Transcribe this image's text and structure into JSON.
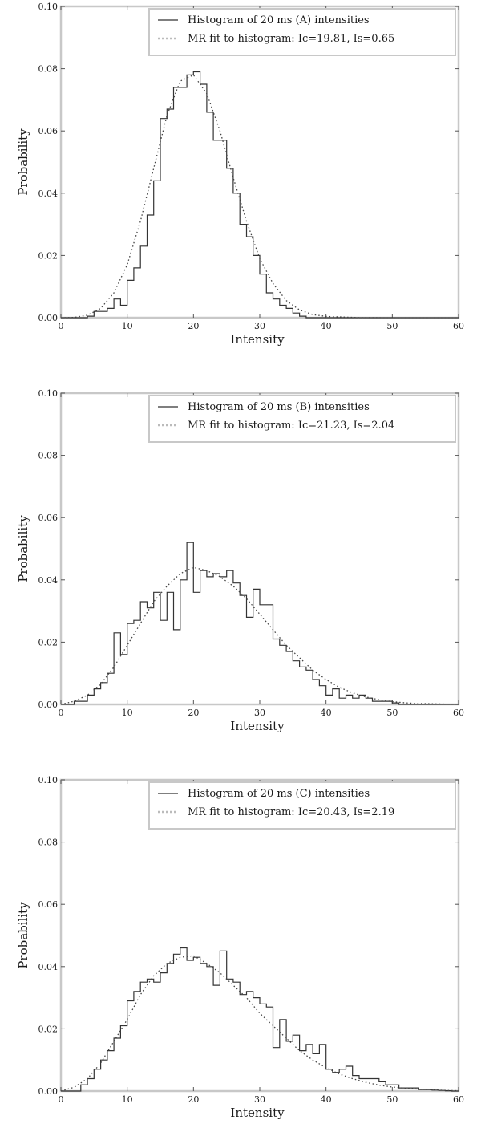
{
  "chart_data": [
    {
      "type": "line",
      "panel": "A",
      "xlabel": "Intensity",
      "ylabel": "Probability",
      "xlim": [
        0,
        60
      ],
      "ylim": [
        0,
        0.1
      ],
      "xticks": [
        "0",
        "10",
        "20",
        "30",
        "40",
        "50",
        "60"
      ],
      "yticks": [
        "0.00",
        "0.02",
        "0.04",
        "0.06",
        "0.08",
        "0.10"
      ],
      "grid": false,
      "legend_position": "top-right",
      "legend": [
        "Histogram of 20 ms (A) intensities",
        "MR fit to histogram: Ic=19.81, Is=0.65"
      ],
      "series": [
        {
          "name": "Histogram of 20 ms (A) intensities",
          "style": "steps",
          "bin_edges": [
            0,
            1,
            2,
            3,
            4,
            5,
            6,
            7,
            8,
            9,
            10,
            11,
            12,
            13,
            14,
            15,
            16,
            17,
            18,
            19,
            20,
            21,
            22,
            23,
            24,
            25,
            26,
            27,
            28,
            29,
            30,
            31,
            32,
            33,
            34,
            35,
            36,
            37,
            38,
            39,
            40,
            41,
            42,
            43,
            44,
            45,
            46,
            47,
            48,
            49,
            50,
            51,
            52,
            53,
            54,
            55,
            56,
            57,
            58,
            59,
            60
          ],
          "values": [
            0,
            0,
            0,
            0,
            0.0005,
            0.002,
            0.002,
            0.003,
            0.006,
            0.004,
            0.012,
            0.016,
            0.023,
            0.033,
            0.044,
            0.064,
            0.067,
            0.074,
            0.074,
            0.078,
            0.079,
            0.075,
            0.066,
            0.057,
            0.057,
            0.048,
            0.04,
            0.03,
            0.026,
            0.02,
            0.014,
            0.008,
            0.006,
            0.004,
            0.003,
            0.0015,
            0.0005,
            0,
            0,
            0,
            0,
            0,
            0,
            0,
            0,
            0,
            0,
            0,
            0,
            0,
            0,
            0,
            0,
            0,
            0,
            0,
            0,
            0,
            0,
            0
          ],
          "color": "#333333"
        },
        {
          "name": "MR fit to histogram: Ic=19.81, Is=0.65",
          "style": "dotted",
          "x": [
            0,
            2,
            4,
            6,
            8,
            10,
            12,
            14,
            16,
            18,
            20,
            22,
            24,
            26,
            28,
            30,
            32,
            34,
            36,
            38,
            40,
            45,
            50,
            55,
            60
          ],
          "values": [
            0,
            0.0001,
            0.0008,
            0.003,
            0.008,
            0.017,
            0.031,
            0.048,
            0.065,
            0.076,
            0.078,
            0.072,
            0.06,
            0.045,
            0.031,
            0.019,
            0.011,
            0.0055,
            0.0025,
            0.001,
            0.0004,
            2e-05,
            0,
            0,
            0
          ],
          "color": "#444444"
        }
      ]
    },
    {
      "type": "line",
      "panel": "B",
      "xlabel": "Intensity",
      "ylabel": "Probability",
      "xlim": [
        0,
        60
      ],
      "ylim": [
        0,
        0.1
      ],
      "xticks": [
        "0",
        "10",
        "20",
        "30",
        "40",
        "50",
        "60"
      ],
      "yticks": [
        "0.00",
        "0.02",
        "0.04",
        "0.06",
        "0.08",
        "0.10"
      ],
      "grid": false,
      "legend_position": "top-right",
      "legend": [
        "Histogram of 20 ms (B) intensities",
        "MR fit to histogram: Ic=21.23, Is=2.04"
      ],
      "series": [
        {
          "name": "Histogram of 20 ms (B) intensities",
          "style": "steps",
          "bin_edges": [
            0,
            1,
            2,
            3,
            4,
            5,
            6,
            7,
            8,
            9,
            10,
            11,
            12,
            13,
            14,
            15,
            16,
            17,
            18,
            19,
            20,
            21,
            22,
            23,
            24,
            25,
            26,
            27,
            28,
            29,
            30,
            31,
            32,
            33,
            34,
            35,
            36,
            37,
            38,
            39,
            40,
            41,
            42,
            43,
            44,
            45,
            46,
            47,
            48,
            49,
            50,
            51,
            52,
            53,
            54,
            55,
            56,
            57,
            58,
            59,
            60
          ],
          "values": [
            0,
            0,
            0.001,
            0.001,
            0.003,
            0.005,
            0.007,
            0.01,
            0.023,
            0.016,
            0.026,
            0.027,
            0.033,
            0.031,
            0.036,
            0.027,
            0.036,
            0.024,
            0.04,
            0.052,
            0.036,
            0.043,
            0.041,
            0.042,
            0.041,
            0.043,
            0.039,
            0.035,
            0.028,
            0.037,
            0.032,
            0.032,
            0.021,
            0.019,
            0.017,
            0.014,
            0.012,
            0.011,
            0.008,
            0.006,
            0.003,
            0.005,
            0.002,
            0.003,
            0.002,
            0.003,
            0.002,
            0.001,
            0.001,
            0.001,
            0.0005,
            0,
            0,
            0,
            0,
            0,
            0,
            0,
            0,
            0
          ],
          "color": "#333333"
        },
        {
          "name": "MR fit to histogram: Ic=21.23, Is=2.04",
          "style": "dotted",
          "x": [
            0,
            2,
            4,
            6,
            8,
            10,
            12,
            14,
            16,
            18,
            20,
            22,
            24,
            26,
            28,
            30,
            32,
            34,
            36,
            38,
            40,
            42,
            44,
            46,
            48,
            50,
            52,
            54,
            56,
            58,
            60
          ],
          "values": [
            0,
            0.001,
            0.003,
            0.0065,
            0.012,
            0.019,
            0.026,
            0.033,
            0.038,
            0.042,
            0.044,
            0.043,
            0.041,
            0.038,
            0.034,
            0.029,
            0.024,
            0.019,
            0.015,
            0.011,
            0.008,
            0.0055,
            0.0037,
            0.0024,
            0.0015,
            0.0009,
            0.0005,
            0.0003,
            0.0002,
            0.0001,
            0
          ],
          "color": "#444444"
        }
      ]
    },
    {
      "type": "line",
      "panel": "C",
      "xlabel": "Intensity",
      "ylabel": "Probability",
      "xlim": [
        0,
        60
      ],
      "ylim": [
        0,
        0.1
      ],
      "xticks": [
        "0",
        "10",
        "20",
        "30",
        "40",
        "50",
        "60"
      ],
      "yticks": [
        "0.00",
        "0.02",
        "0.04",
        "0.06",
        "0.08",
        "0.10"
      ],
      "grid": false,
      "legend_position": "top-right",
      "legend": [
        "Histogram of 20 ms (C) intensities",
        "MR fit to histogram: Ic=20.43, Is=2.19"
      ],
      "series": [
        {
          "name": "Histogram of 20 ms (C) intensities",
          "style": "steps",
          "bin_edges": [
            0,
            1,
            2,
            3,
            4,
            5,
            6,
            7,
            8,
            9,
            10,
            11,
            12,
            13,
            14,
            15,
            16,
            17,
            18,
            19,
            20,
            21,
            22,
            23,
            24,
            25,
            26,
            27,
            28,
            29,
            30,
            31,
            32,
            33,
            34,
            35,
            36,
            37,
            38,
            39,
            40,
            41,
            42,
            43,
            44,
            45,
            46,
            47,
            48,
            49,
            50,
            51,
            52,
            53,
            54,
            55,
            56,
            57,
            58,
            59,
            60
          ],
          "values": [
            0,
            0,
            0,
            0.002,
            0.004,
            0.007,
            0.01,
            0.013,
            0.017,
            0.021,
            0.029,
            0.032,
            0.035,
            0.036,
            0.035,
            0.038,
            0.041,
            0.044,
            0.046,
            0.042,
            0.043,
            0.041,
            0.04,
            0.034,
            0.045,
            0.036,
            0.035,
            0.031,
            0.032,
            0.03,
            0.028,
            0.027,
            0.014,
            0.023,
            0.016,
            0.018,
            0.013,
            0.015,
            0.012,
            0.015,
            0.007,
            0.006,
            0.007,
            0.008,
            0.005,
            0.004,
            0.004,
            0.004,
            0.003,
            0.002,
            0.002,
            0.001,
            0.001,
            0.001,
            0.0005,
            0.0005,
            0.0003,
            0.0002,
            0.0001,
            0
          ],
          "color": "#333333"
        },
        {
          "name": "MR fit to histogram: Ic=20.43, Is=2.19",
          "style": "dotted",
          "x": [
            0,
            2,
            4,
            6,
            8,
            10,
            12,
            14,
            16,
            18,
            20,
            22,
            24,
            26,
            28,
            30,
            32,
            34,
            36,
            38,
            40,
            42,
            44,
            46,
            48,
            50,
            52,
            54,
            56,
            58,
            60
          ],
          "values": [
            0,
            0.0012,
            0.004,
            0.009,
            0.016,
            0.023,
            0.031,
            0.037,
            0.041,
            0.043,
            0.0435,
            0.041,
            0.038,
            0.034,
            0.03,
            0.025,
            0.021,
            0.017,
            0.013,
            0.01,
            0.0075,
            0.0055,
            0.004,
            0.0028,
            0.0019,
            0.0013,
            0.0009,
            0.0006,
            0.0004,
            0.0002,
            0.0001
          ],
          "color": "#444444"
        }
      ]
    }
  ]
}
